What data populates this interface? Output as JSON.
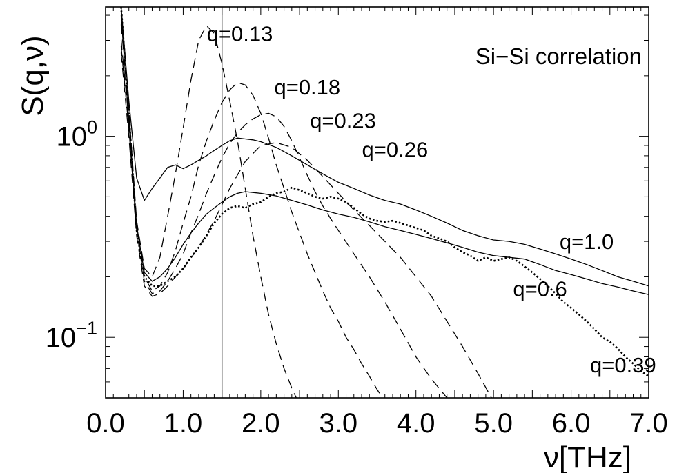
{
  "chart_data": {
    "type": "line",
    "title": "Si−Si correlation",
    "xlabel": "ν[THz]",
    "ylabel": "S(q,ν)",
    "xlim": [
      0.0,
      7.0
    ],
    "ylim": [
      0.05,
      4.4
    ],
    "yscale": "log",
    "grid": false,
    "x_ticks": [
      "0.0",
      "1.0",
      "2.0",
      "3.0",
      "4.0",
      "5.0",
      "6.0",
      "7.0"
    ],
    "y_ticks": [
      {
        "value": 1.0,
        "base": "10",
        "exp": "0"
      },
      {
        "value": 0.1,
        "base": "10",
        "exp": "−1"
      }
    ],
    "vertical_line_x": 1.5,
    "series": [
      {
        "name": "q=0.13",
        "style": "dashed",
        "x": [
          0.2,
          0.3,
          0.4,
          0.5,
          0.6,
          0.7,
          0.8,
          0.9,
          1.0,
          1.1,
          1.2,
          1.3,
          1.4,
          1.5,
          1.6,
          1.7,
          1.8,
          1.9,
          2.0,
          2.1,
          2.2,
          2.3,
          2.4,
          2.5
        ],
        "y": [
          3.6,
          1.35,
          0.38,
          0.22,
          0.2,
          0.25,
          0.4,
          0.65,
          1.1,
          1.9,
          3.0,
          3.55,
          3.25,
          2.3,
          1.5,
          0.95,
          0.55,
          0.32,
          0.2,
          0.13,
          0.093,
          0.07,
          0.056,
          0.046
        ]
      },
      {
        "name": "q=0.18",
        "style": "dashed",
        "x": [
          0.2,
          0.3,
          0.4,
          0.5,
          0.6,
          0.7,
          0.8,
          0.9,
          1.0,
          1.1,
          1.2,
          1.3,
          1.4,
          1.5,
          1.6,
          1.7,
          1.8,
          1.9,
          2.0,
          2.1,
          2.2,
          2.3,
          2.4,
          2.5,
          2.6,
          2.7,
          2.8,
          2.9,
          3.0,
          3.1,
          3.2,
          3.3,
          3.4,
          3.5,
          3.6
        ],
        "y": [
          3.0,
          1.2,
          0.36,
          0.2,
          0.17,
          0.18,
          0.21,
          0.27,
          0.37,
          0.5,
          0.72,
          0.95,
          1.2,
          1.47,
          1.7,
          1.85,
          1.8,
          1.6,
          1.3,
          0.98,
          0.72,
          0.55,
          0.42,
          0.33,
          0.26,
          0.21,
          0.17,
          0.14,
          0.12,
          0.1,
          0.087,
          0.074,
          0.064,
          0.055,
          0.048
        ]
      },
      {
        "name": "q=0.23",
        "style": "dashed",
        "x": [
          0.2,
          0.3,
          0.4,
          0.5,
          0.6,
          0.7,
          0.8,
          0.9,
          1.0,
          1.1,
          1.2,
          1.3,
          1.4,
          1.5,
          1.6,
          1.7,
          1.8,
          1.9,
          2.0,
          2.1,
          2.2,
          2.3,
          2.4,
          2.5,
          2.6,
          2.7,
          2.8,
          2.9,
          3.0,
          3.2,
          3.4,
          3.6,
          3.8,
          4.0,
          4.2,
          4.4
        ],
        "y": [
          2.8,
          1.1,
          0.34,
          0.19,
          0.165,
          0.17,
          0.19,
          0.22,
          0.26,
          0.33,
          0.41,
          0.52,
          0.64,
          0.78,
          0.92,
          1.04,
          1.14,
          1.22,
          1.28,
          1.3,
          1.25,
          1.12,
          0.95,
          0.78,
          0.64,
          0.53,
          0.45,
          0.39,
          0.34,
          0.26,
          0.2,
          0.15,
          0.11,
          0.08,
          0.062,
          0.05
        ]
      },
      {
        "name": "q=0.26",
        "style": "dashed",
        "x": [
          0.2,
          0.3,
          0.4,
          0.5,
          0.6,
          0.7,
          0.8,
          0.9,
          1.0,
          1.2,
          1.4,
          1.6,
          1.8,
          2.0,
          2.2,
          2.4,
          2.6,
          2.8,
          3.0,
          3.2,
          3.4,
          3.6,
          3.8,
          4.0,
          4.2,
          4.4,
          4.6,
          4.8,
          5.0
        ],
        "y": [
          2.6,
          1.0,
          0.32,
          0.18,
          0.16,
          0.165,
          0.18,
          0.2,
          0.22,
          0.28,
          0.38,
          0.55,
          0.75,
          0.9,
          0.93,
          0.88,
          0.76,
          0.63,
          0.52,
          0.43,
          0.36,
          0.3,
          0.25,
          0.2,
          0.16,
          0.12,
          0.09,
          0.066,
          0.048
        ]
      },
      {
        "name": "q=0.39",
        "style": "dotted",
        "x": [
          0.2,
          0.3,
          0.4,
          0.5,
          0.6,
          0.7,
          0.8,
          0.9,
          1.0,
          1.1,
          1.2,
          1.3,
          1.4,
          1.5,
          1.6,
          1.7,
          1.8,
          1.9,
          2.0,
          2.1,
          2.2,
          2.3,
          2.4,
          2.5,
          2.6,
          2.7,
          2.8,
          2.9,
          3.0,
          3.1,
          3.2,
          3.3,
          3.4,
          3.5,
          3.6,
          3.7,
          3.8,
          3.9,
          4.0,
          4.1,
          4.2,
          4.3,
          4.4,
          4.5,
          4.6,
          4.7,
          4.8,
          4.9,
          5.0,
          5.1,
          5.2,
          5.3,
          5.4,
          5.5,
          5.6,
          5.7,
          5.8,
          5.9,
          6.0,
          6.1,
          6.2,
          6.3,
          6.4,
          6.5,
          6.6,
          6.7,
          6.8,
          6.9,
          7.0
        ],
        "y": [
          4.4,
          1.3,
          0.34,
          0.2,
          0.18,
          0.18,
          0.19,
          0.2,
          0.22,
          0.25,
          0.28,
          0.32,
          0.37,
          0.41,
          0.44,
          0.45,
          0.44,
          0.46,
          0.47,
          0.5,
          0.52,
          0.53,
          0.555,
          0.54,
          0.52,
          0.5,
          0.49,
          0.5,
          0.49,
          0.47,
          0.44,
          0.41,
          0.39,
          0.38,
          0.375,
          0.38,
          0.37,
          0.36,
          0.35,
          0.34,
          0.32,
          0.31,
          0.3,
          0.28,
          0.265,
          0.255,
          0.24,
          0.25,
          0.24,
          0.245,
          0.25,
          0.24,
          0.225,
          0.21,
          0.195,
          0.18,
          0.165,
          0.15,
          0.14,
          0.13,
          0.12,
          0.11,
          0.1,
          0.095,
          0.088,
          0.08,
          0.074,
          0.068,
          0.064
        ]
      },
      {
        "name": "q=0.6",
        "style": "solid",
        "x": [
          0.2,
          0.3,
          0.4,
          0.5,
          0.6,
          0.7,
          0.8,
          0.9,
          1.0,
          1.1,
          1.2,
          1.3,
          1.4,
          1.5,
          1.6,
          1.7,
          1.8,
          1.9,
          2.0,
          2.2,
          2.4,
          2.6,
          2.8,
          3.0,
          3.2,
          3.4,
          3.6,
          3.8,
          4.0,
          4.2,
          4.4,
          4.6,
          4.8,
          5.0,
          5.2,
          5.4,
          5.6,
          5.8,
          6.0,
          6.2,
          6.4,
          6.6,
          6.8,
          7.0
        ],
        "y": [
          4.0,
          1.2,
          0.36,
          0.21,
          0.19,
          0.2,
          0.22,
          0.25,
          0.29,
          0.33,
          0.37,
          0.41,
          0.44,
          0.47,
          0.5,
          0.52,
          0.53,
          0.525,
          0.52,
          0.505,
          0.48,
          0.455,
          0.43,
          0.41,
          0.395,
          0.375,
          0.355,
          0.34,
          0.325,
          0.31,
          0.295,
          0.28,
          0.265,
          0.255,
          0.25,
          0.245,
          0.23,
          0.215,
          0.205,
          0.195,
          0.185,
          0.178,
          0.17,
          0.163
        ]
      },
      {
        "name": "q=1.0",
        "style": "solid",
        "x": [
          0.2,
          0.3,
          0.4,
          0.5,
          0.6,
          0.7,
          0.8,
          0.9,
          1.0,
          1.1,
          1.2,
          1.3,
          1.4,
          1.5,
          1.6,
          1.7,
          1.8,
          1.9,
          2.0,
          2.2,
          2.4,
          2.6,
          2.8,
          3.0,
          3.2,
          3.4,
          3.6,
          3.8,
          4.0,
          4.2,
          4.4,
          4.6,
          4.8,
          5.0,
          5.2,
          5.4,
          5.6,
          5.8,
          6.0,
          6.2,
          6.4,
          6.6,
          6.8,
          7.0
        ],
        "y": [
          4.4,
          1.5,
          0.62,
          0.48,
          0.55,
          0.62,
          0.7,
          0.72,
          0.69,
          0.72,
          0.76,
          0.8,
          0.85,
          0.9,
          0.95,
          0.98,
          0.97,
          0.96,
          0.94,
          0.88,
          0.8,
          0.72,
          0.65,
          0.59,
          0.55,
          0.51,
          0.48,
          0.46,
          0.43,
          0.4,
          0.37,
          0.34,
          0.32,
          0.305,
          0.3,
          0.29,
          0.275,
          0.26,
          0.245,
          0.23,
          0.215,
          0.2,
          0.19,
          0.18
        ]
      }
    ],
    "annotations": [
      {
        "text": "q=0.13",
        "x": 1.73,
        "y": 3.25
      },
      {
        "text": "q=0.18",
        "x": 2.6,
        "y": 1.76
      },
      {
        "text": "q=0.23",
        "x": 3.06,
        "y": 1.2
      },
      {
        "text": "q=0.26",
        "x": 3.73,
        "y": 0.86
      },
      {
        "text": "q=1.0",
        "x": 6.2,
        "y": 0.3
      },
      {
        "text": "q=0.6",
        "x": 5.6,
        "y": 0.175
      },
      {
        "text": "q=0.39",
        "x": 6.67,
        "y": 0.073
      }
    ]
  }
}
